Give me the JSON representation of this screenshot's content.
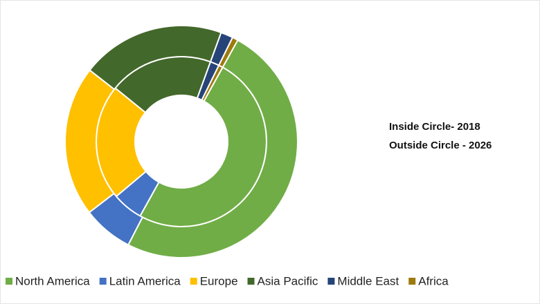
{
  "chart_data": {
    "type": "donut",
    "categories": [
      "North America",
      "Latin America",
      "Europe",
      "Asia Pacific",
      "Middle East",
      "Africa"
    ],
    "colors": [
      "#70ad47",
      "#4472c4",
      "#ffc000",
      "#43682b",
      "#264478",
      "#9e7a0d"
    ],
    "series": [
      {
        "values": [
          50,
          5.8,
          22,
          19.7,
          1.7,
          0.8
        ]
      },
      {
        "values": [
          49.5,
          7,
          21,
          20,
          1.7,
          0.8
        ]
      }
    ],
    "annotations": [
      "Inside Circle- 2018",
      "Outside Circle - 2026"
    ]
  }
}
